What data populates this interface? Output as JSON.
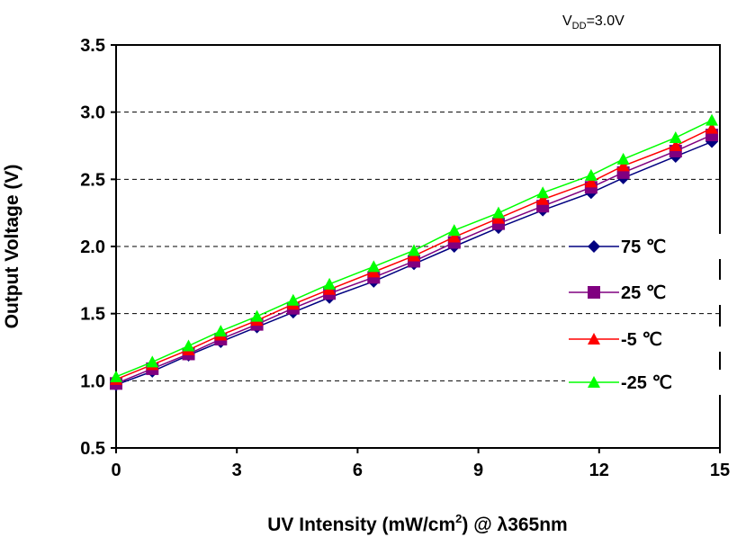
{
  "chart_data": {
    "type": "line",
    "annotation": {
      "main": "V",
      "sub": "DD",
      "rest": "=3.0V"
    },
    "xlabel": {
      "pre": "UV Intensity (mW/cm",
      "sup": "2",
      "post": ") @ λ365nm"
    },
    "ylabel": "Output Voltage (V)",
    "xlim": [
      0,
      15
    ],
    "ylim": [
      0.5,
      3.5
    ],
    "xticks": [
      "0",
      "3",
      "6",
      "9",
      "12",
      "15"
    ],
    "yticks": [
      "3.5",
      "3.0",
      "2.5",
      "2.0",
      "1.5",
      "1.0",
      "0.5"
    ],
    "grid": "horizontal dashed",
    "legend_position": "right",
    "x": [
      0,
      0.9,
      1.8,
      2.6,
      3.5,
      4.4,
      5.3,
      6.4,
      7.4,
      8.4,
      9.5,
      10.6,
      11.8,
      12.6,
      13.9,
      14.8
    ],
    "series": [
      {
        "name": "75 ℃",
        "color": "#000080",
        "marker": "diamond",
        "values": [
          0.97,
          1.07,
          1.19,
          1.29,
          1.4,
          1.51,
          1.62,
          1.74,
          1.87,
          2.0,
          2.14,
          2.27,
          2.4,
          2.51,
          2.67,
          2.78
        ]
      },
      {
        "name": "25 ℃",
        "color": "#800080",
        "marker": "square",
        "values": [
          0.98,
          1.09,
          1.2,
          1.31,
          1.42,
          1.54,
          1.65,
          1.77,
          1.89,
          2.03,
          2.17,
          2.3,
          2.44,
          2.55,
          2.71,
          2.83
        ]
      },
      {
        "name": "-5 ℃",
        "color": "#ff0000",
        "marker": "triangle",
        "values": [
          1.01,
          1.12,
          1.23,
          1.34,
          1.45,
          1.57,
          1.68,
          1.81,
          1.93,
          2.07,
          2.21,
          2.35,
          2.48,
          2.6,
          2.75,
          2.88
        ]
      },
      {
        "name": "-25 ℃",
        "color": "#00ff00",
        "marker": "triangle",
        "values": [
          1.03,
          1.14,
          1.26,
          1.37,
          1.48,
          1.6,
          1.72,
          1.85,
          1.97,
          2.12,
          2.25,
          2.4,
          2.53,
          2.65,
          2.81,
          2.94
        ]
      }
    ]
  }
}
